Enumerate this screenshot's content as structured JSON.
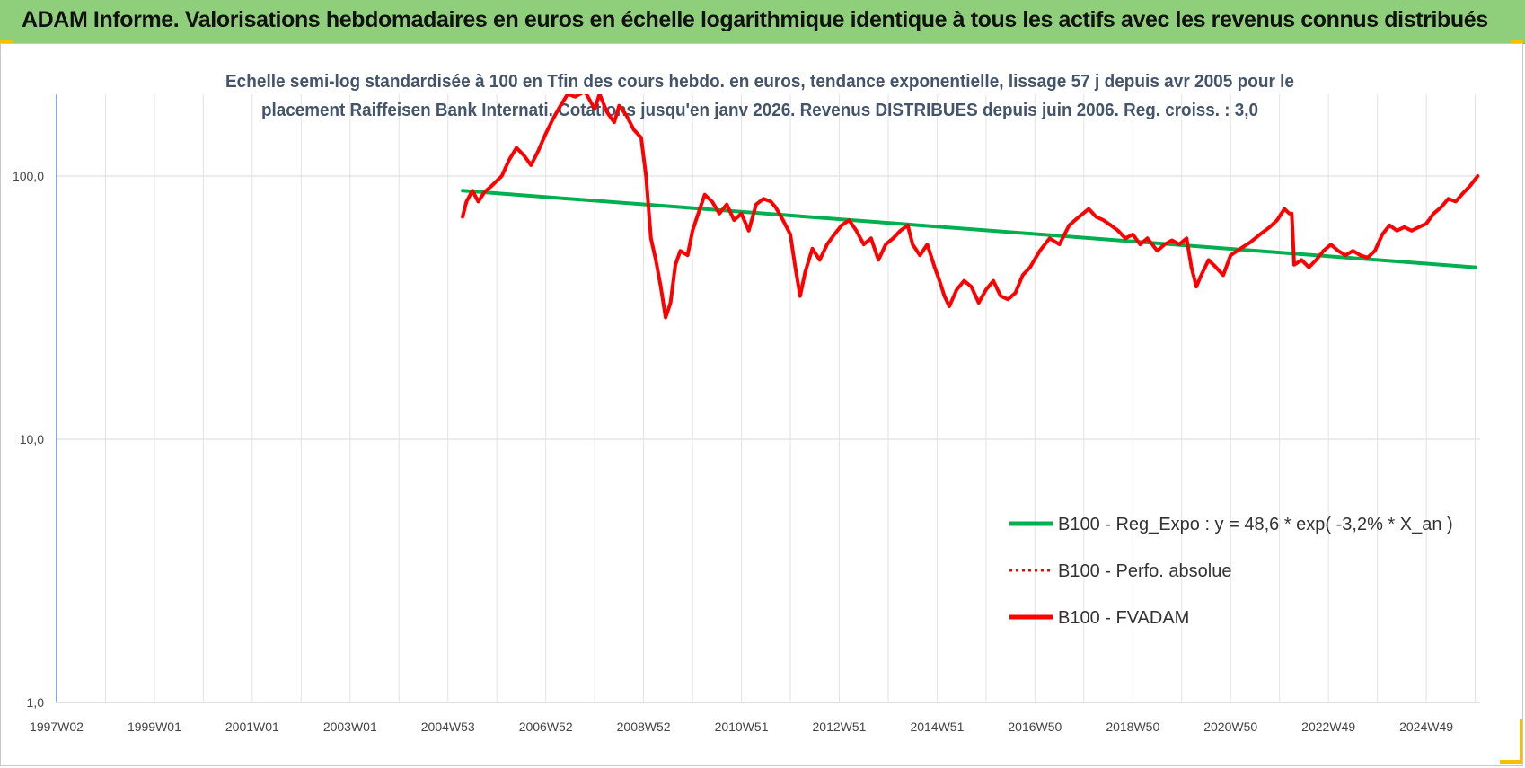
{
  "banner": {
    "title": "ADAM Informe. Valorisations hebdomadaires en euros en échelle logarithmique identique à tous les actifs avec les revenus connus distribués",
    "background": "#8fce7a"
  },
  "chart_data": {
    "type": "line",
    "title_lines": [
      "Echelle semi-log standardisée à 100 en Tfin des cours hebdo. en euros, tendance exponentielle, lissage 57 j depuis avr 2005 pour le",
      "placement Raiffeisen Bank Internati. Cotations jusqu'en janv 2026. Revenus DISTRIBUES depuis juin 2006. Reg. croiss. : 3,0"
    ],
    "xlabel": "",
    "ylabel": "",
    "y_scale": "log",
    "ylim": [
      1,
      200
    ],
    "y_ticks": [
      "1,0",
      "10,0",
      "100,0"
    ],
    "x_range_years": [
      1997.0,
      2026.1
    ],
    "x_ticks": [
      {
        "label": "1997W02",
        "year": 1997.0
      },
      {
        "label": "1999W01",
        "year": 1999.0
      },
      {
        "label": "2001W01",
        "year": 2001.0
      },
      {
        "label": "2003W01",
        "year": 2003.0
      },
      {
        "label": "2004W53",
        "year": 2005.0
      },
      {
        "label": "2006W52",
        "year": 2007.0
      },
      {
        "label": "2008W52",
        "year": 2009.0
      },
      {
        "label": "2010W51",
        "year": 2011.0
      },
      {
        "label": "2012W51",
        "year": 2013.0
      },
      {
        "label": "2014W51",
        "year": 2015.0
      },
      {
        "label": "2016W50",
        "year": 2017.0
      },
      {
        "label": "2018W50",
        "year": 2019.0
      },
      {
        "label": "2020W50",
        "year": 2021.0
      },
      {
        "label": "2022W49",
        "year": 2023.0
      },
      {
        "label": "2024W49",
        "year": 2025.0
      }
    ],
    "grid": true,
    "legend_position": "bottom-right",
    "series": [
      {
        "name": "B100 - Reg_Expo : y = 48,6 * exp( -3,2% *  X_an )",
        "color": "#00b050",
        "style": "solid",
        "points": [
          [
            2005.3,
            88
          ],
          [
            2026.0,
            45
          ]
        ]
      },
      {
        "name": "B100 - Perfo. absolue",
        "color": "#ff0000",
        "style": "dotted",
        "points": []
      },
      {
        "name": "B100 - FVADAM",
        "color": "#ff0000",
        "style": "solid",
        "points": [
          [
            2005.3,
            70
          ],
          [
            2005.38,
            80
          ],
          [
            2005.5,
            88
          ],
          [
            2005.62,
            80
          ],
          [
            2005.75,
            87
          ],
          [
            2005.9,
            92
          ],
          [
            2006.1,
            100
          ],
          [
            2006.25,
            115
          ],
          [
            2006.4,
            128
          ],
          [
            2006.55,
            120
          ],
          [
            2006.7,
            110
          ],
          [
            2006.85,
            125
          ],
          [
            2007.0,
            145
          ],
          [
            2007.15,
            165
          ],
          [
            2007.3,
            185
          ],
          [
            2007.45,
            205
          ],
          [
            2007.6,
            200
          ],
          [
            2007.8,
            210
          ],
          [
            2008.0,
            180
          ],
          [
            2008.1,
            205
          ],
          [
            2008.25,
            175
          ],
          [
            2008.4,
            160
          ],
          [
            2008.5,
            185
          ],
          [
            2008.65,
            170
          ],
          [
            2008.8,
            150
          ],
          [
            2008.95,
            140
          ],
          [
            2009.05,
            100
          ],
          [
            2009.15,
            58
          ],
          [
            2009.25,
            48
          ],
          [
            2009.35,
            38
          ],
          [
            2009.45,
            29
          ],
          [
            2009.55,
            33
          ],
          [
            2009.65,
            46
          ],
          [
            2009.75,
            52
          ],
          [
            2009.9,
            50
          ],
          [
            2010.0,
            62
          ],
          [
            2010.15,
            75
          ],
          [
            2010.25,
            85
          ],
          [
            2010.4,
            80
          ],
          [
            2010.55,
            72
          ],
          [
            2010.7,
            78
          ],
          [
            2010.85,
            68
          ],
          [
            2011.0,
            72
          ],
          [
            2011.15,
            62
          ],
          [
            2011.3,
            78
          ],
          [
            2011.45,
            82
          ],
          [
            2011.6,
            80
          ],
          [
            2011.7,
            76
          ],
          [
            2011.85,
            68
          ],
          [
            2012.0,
            60
          ],
          [
            2012.1,
            45
          ],
          [
            2012.2,
            35
          ],
          [
            2012.3,
            43
          ],
          [
            2012.45,
            53
          ],
          [
            2012.6,
            48
          ],
          [
            2012.75,
            55
          ],
          [
            2012.9,
            60
          ],
          [
            2013.05,
            65
          ],
          [
            2013.2,
            68
          ],
          [
            2013.35,
            62
          ],
          [
            2013.5,
            55
          ],
          [
            2013.65,
            58
          ],
          [
            2013.8,
            48
          ],
          [
            2013.95,
            55
          ],
          [
            2014.1,
            58
          ],
          [
            2014.25,
            62
          ],
          [
            2014.4,
            65
          ],
          [
            2014.5,
            55
          ],
          [
            2014.65,
            50
          ],
          [
            2014.8,
            55
          ],
          [
            2014.95,
            45
          ],
          [
            2015.05,
            40
          ],
          [
            2015.15,
            35
          ],
          [
            2015.25,
            32
          ],
          [
            2015.4,
            37
          ],
          [
            2015.55,
            40
          ],
          [
            2015.7,
            38
          ],
          [
            2015.85,
            33
          ],
          [
            2016.0,
            37
          ],
          [
            2016.15,
            40
          ],
          [
            2016.3,
            35
          ],
          [
            2016.45,
            34
          ],
          [
            2016.6,
            36
          ],
          [
            2016.75,
            42
          ],
          [
            2016.9,
            45
          ],
          [
            2017.1,
            52
          ],
          [
            2017.3,
            58
          ],
          [
            2017.5,
            55
          ],
          [
            2017.7,
            65
          ],
          [
            2017.9,
            70
          ],
          [
            2018.1,
            75
          ],
          [
            2018.25,
            70
          ],
          [
            2018.4,
            68
          ],
          [
            2018.55,
            65
          ],
          [
            2018.7,
            62
          ],
          [
            2018.85,
            58
          ],
          [
            2019.0,
            60
          ],
          [
            2019.15,
            55
          ],
          [
            2019.3,
            58
          ],
          [
            2019.5,
            52
          ],
          [
            2019.65,
            55
          ],
          [
            2019.8,
            57
          ],
          [
            2019.95,
            55
          ],
          [
            2020.1,
            58
          ],
          [
            2020.2,
            45
          ],
          [
            2020.3,
            38
          ],
          [
            2020.4,
            42
          ],
          [
            2020.55,
            48
          ],
          [
            2020.7,
            45
          ],
          [
            2020.85,
            42
          ],
          [
            2021.0,
            50
          ],
          [
            2021.2,
            53
          ],
          [
            2021.4,
            56
          ],
          [
            2021.6,
            60
          ],
          [
            2021.8,
            64
          ],
          [
            2021.95,
            68
          ],
          [
            2022.1,
            75
          ],
          [
            2022.2,
            72
          ],
          [
            2022.25,
            72
          ],
          [
            2022.3,
            46
          ],
          [
            2022.45,
            48
          ],
          [
            2022.6,
            45
          ],
          [
            2022.75,
            48
          ],
          [
            2022.9,
            52
          ],
          [
            2023.05,
            55
          ],
          [
            2023.2,
            52
          ],
          [
            2023.35,
            50
          ],
          [
            2023.5,
            52
          ],
          [
            2023.65,
            50
          ],
          [
            2023.8,
            49
          ],
          [
            2023.95,
            52
          ],
          [
            2024.1,
            60
          ],
          [
            2024.25,
            65
          ],
          [
            2024.4,
            62
          ],
          [
            2024.55,
            64
          ],
          [
            2024.7,
            62
          ],
          [
            2024.85,
            64
          ],
          [
            2025.0,
            66
          ],
          [
            2025.15,
            72
          ],
          [
            2025.3,
            76
          ],
          [
            2025.45,
            82
          ],
          [
            2025.6,
            80
          ],
          [
            2025.75,
            86
          ],
          [
            2025.9,
            92
          ],
          [
            2026.05,
            100
          ]
        ]
      }
    ]
  }
}
